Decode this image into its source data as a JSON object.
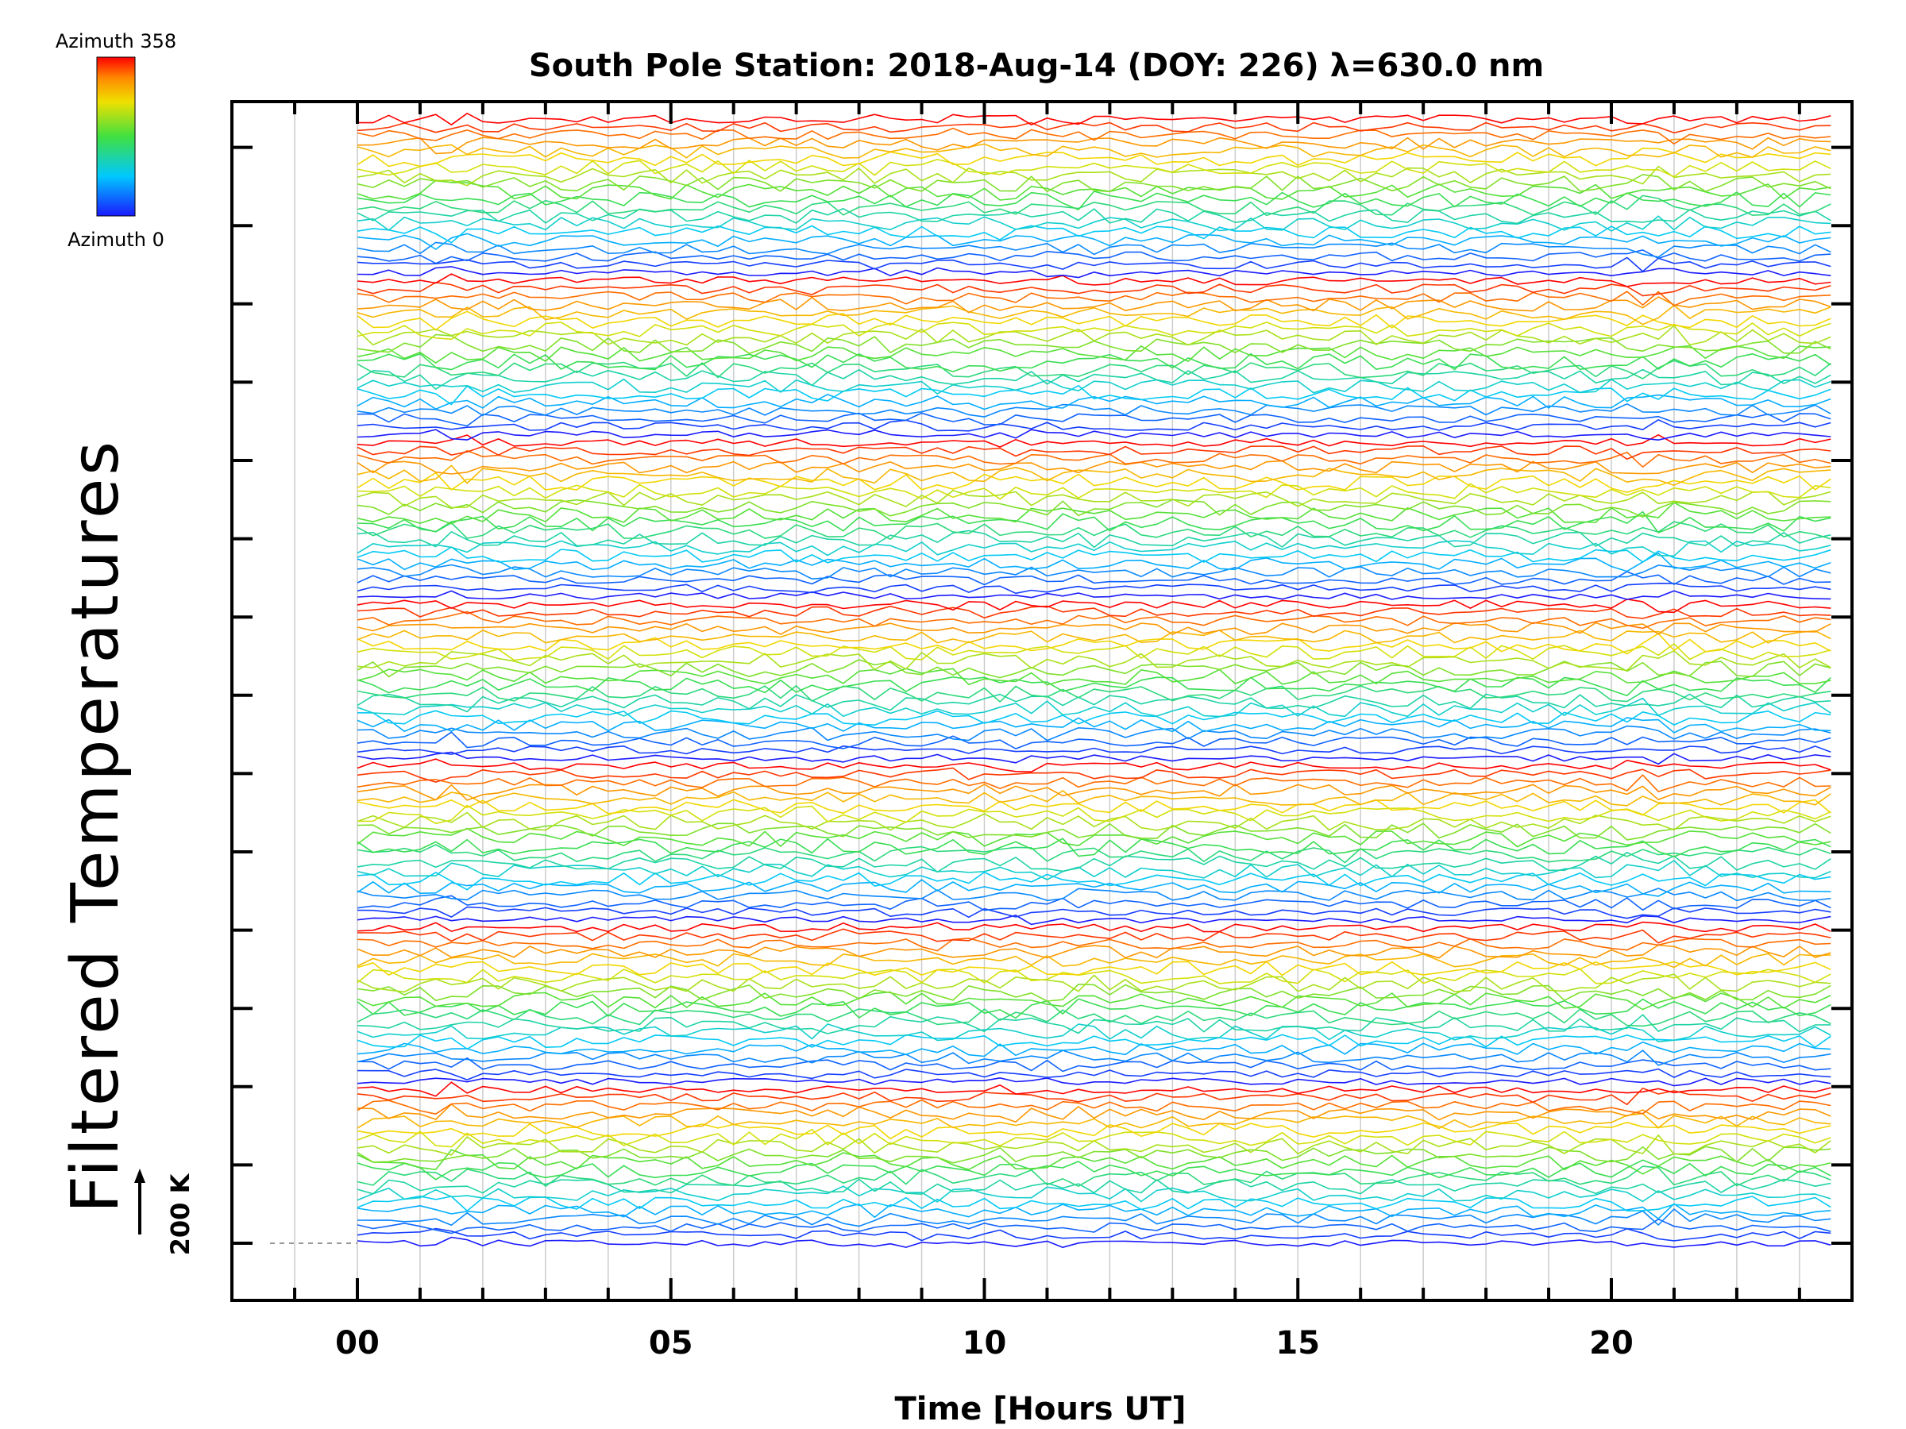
{
  "chart_data": {
    "type": "line",
    "title": "South Pole Station: 2018-Aug-14 (DOY: 226) λ=630.0 nm",
    "xlabel": "Time [Hours UT]",
    "ylabel": "Filtered Temperatures",
    "xlim": [
      -2,
      24
    ],
    "x_tick_labels": [
      {
        "x": 0,
        "label": "00"
      },
      {
        "x": 5,
        "label": "05"
      },
      {
        "x": 10,
        "label": "10"
      },
      {
        "x": 15,
        "label": "15"
      },
      {
        "x": 20,
        "label": "20"
      }
    ],
    "x_minor_step": 1,
    "x_grid": true,
    "data_x_range": [
      0,
      23.7
    ],
    "data_x_step": 0.25,
    "num_traces": 140,
    "azimuth_range": [
      0,
      358
    ],
    "colorbar": {
      "top_label": "Azimuth 358",
      "bottom_label": "Azimuth 0",
      "colormap": "rainbow"
    },
    "scale_bar_label": "200 K",
    "legend_placement": "top-left",
    "colors": {
      "low": "#1a1aff",
      "mid": "#33dd33",
      "high": "#ff0000",
      "axis": "#000000",
      "grid": "#cccccc"
    }
  }
}
